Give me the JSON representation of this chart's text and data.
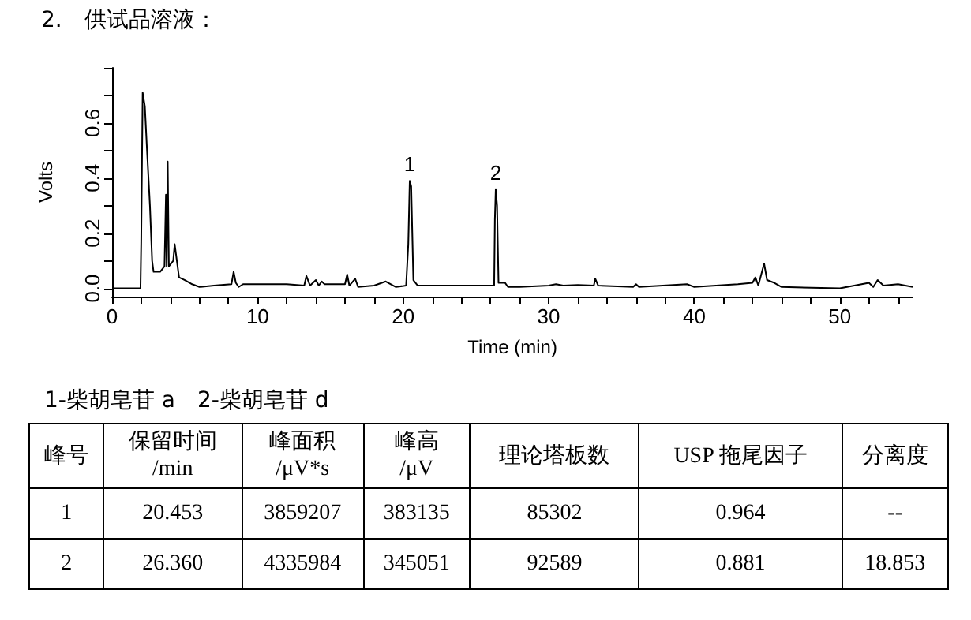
{
  "chart_data": {
    "type": "line",
    "title": "2.　供试品溶液：",
    "xlabel": "Time (min)",
    "ylabel": "Volts",
    "xlim": [
      0,
      55
    ],
    "ylim": [
      -0.03,
      0.8
    ],
    "xticks": [
      0,
      {
        "value": 2,
        "label": null
      },
      {
        "value": 4,
        "label": null
      },
      {
        "value": 6,
        "label": null
      },
      {
        "value": 8,
        "label": null
      },
      10,
      {
        "value": 12,
        "label": null
      },
      {
        "value": 14,
        "label": null
      },
      {
        "value": 16,
        "label": null
      },
      {
        "value": 18,
        "label": null
      },
      20,
      {
        "value": 22,
        "label": null
      },
      {
        "value": 24,
        "label": null
      },
      {
        "value": 26,
        "label": null
      },
      {
        "value": 28,
        "label": null
      },
      30,
      {
        "value": 32,
        "label": null
      },
      {
        "value": 34,
        "label": null
      },
      {
        "value": 36,
        "label": null
      },
      {
        "value": 38,
        "label": null
      },
      40,
      {
        "value": 42,
        "label": null
      },
      {
        "value": 44,
        "label": null
      },
      {
        "value": 46,
        "label": null
      },
      {
        "value": 48,
        "label": null
      },
      50,
      {
        "value": 52,
        "label": null
      },
      {
        "value": 54,
        "label": null
      }
    ],
    "yticks": [
      {
        "value": 0,
        "label": "0.0"
      },
      {
        "value": 0.1,
        "label": null
      },
      {
        "value": 0.2,
        "label": "0.2"
      },
      {
        "value": 0.3,
        "label": null
      },
      {
        "value": 0.4,
        "label": "0.4"
      },
      {
        "value": 0.5,
        "label": null
      },
      {
        "value": 0.6,
        "label": "0.6"
      },
      {
        "value": 0.7,
        "label": null
      },
      {
        "value": 0.8,
        "label": null
      }
    ],
    "grid": false,
    "marker": "none",
    "line_style": "solid",
    "x": [
      0,
      1.95,
      2.0,
      2.1,
      2.25,
      2.4,
      2.6,
      2.75,
      2.85,
      3.3,
      3.6,
      3.7,
      3.75,
      3.82,
      3.9,
      4.2,
      4.3,
      4.5,
      4.6,
      5.0,
      5.5,
      6,
      7,
      8.2,
      8.35,
      8.5,
      8.7,
      9,
      12,
      13.2,
      13.35,
      13.6,
      14,
      14.2,
      14.4,
      14.6,
      16,
      16.15,
      16.3,
      16.7,
      16.9,
      18,
      18.8,
      19.5,
      20.2,
      20.35,
      20.45,
      20.55,
      20.7,
      21,
      22,
      25,
      26.25,
      26.3,
      26.36,
      26.45,
      26.55,
      27,
      27.2,
      28,
      30,
      30.5,
      31,
      32,
      33.1,
      33.2,
      33.4,
      35.8,
      36,
      36.2,
      39.5,
      40,
      43,
      44,
      44.2,
      44.4,
      44.8,
      45,
      45.5,
      46,
      50,
      52,
      52.3,
      52.6,
      53,
      54,
      55
    ],
    "series": [
      {
        "color": "#000000",
        "values": [
          0,
          0,
          0.17,
          0.71,
          0.66,
          0.5,
          0.3,
          0.1,
          0.06,
          0.06,
          0.08,
          0.34,
          0.08,
          0.46,
          0.08,
          0.1,
          0.16,
          0.08,
          0.04,
          0.03,
          0.015,
          0.005,
          0.01,
          0.015,
          0.06,
          0.02,
          0.005,
          0.015,
          0.015,
          0.01,
          0.045,
          0.01,
          0.03,
          0.01,
          0.025,
          0.015,
          0.015,
          0.05,
          0.01,
          0.035,
          0.005,
          0.01,
          0.025,
          0.005,
          0.01,
          0.16,
          0.39,
          0.37,
          0.03,
          0.01,
          0.01,
          0.01,
          0.01,
          0.25,
          0.36,
          0.3,
          0.02,
          0.02,
          0.005,
          0.005,
          0.01,
          0.015,
          0.01,
          0.012,
          0.01,
          0.035,
          0.01,
          0.005,
          0.015,
          0.005,
          0.015,
          0.005,
          0.015,
          0.02,
          0.04,
          0.01,
          0.09,
          0.03,
          0.02,
          0.005,
          0,
          0.02,
          0.005,
          0.03,
          0.01,
          0.015,
          0.005
        ]
      }
    ],
    "annotations": [
      {
        "text": "1",
        "x": 20.45,
        "y": 0.39
      },
      {
        "text": "2",
        "x": 26.36,
        "y": 0.36
      },
      "1-柴胡皂苷 a　2-柴胡皂苷 d",
      "峰号",
      "保留时间\n/min",
      "峰面积\n/μV*s",
      "峰高\n/μV",
      "理论塔板数",
      "USP 拖尾因子",
      "分离度",
      "1",
      "20.453",
      "3859207",
      "383135",
      "85302",
      "0.964",
      "--",
      "2",
      "26.360",
      "4335984",
      "345051",
      "92589",
      "0.881",
      "18.853"
    ]
  }
}
